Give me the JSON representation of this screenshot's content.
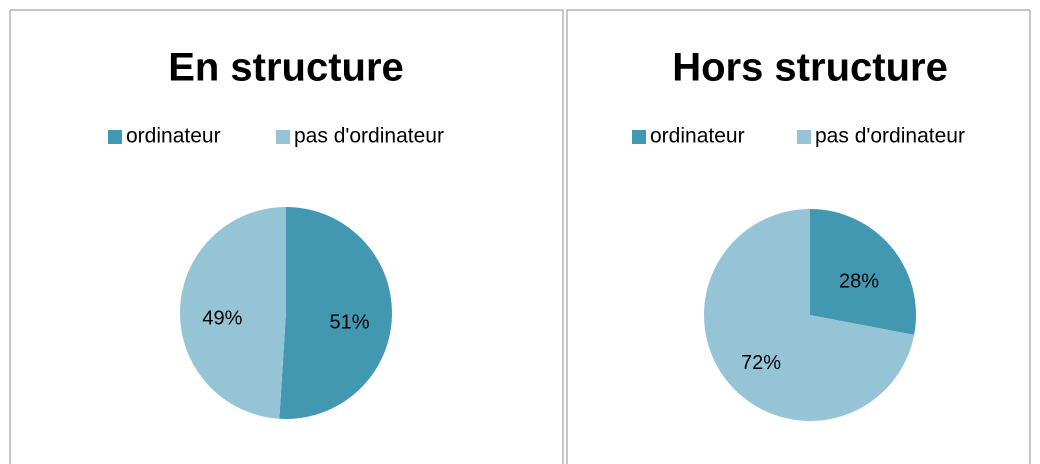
{
  "chart_data": [
    {
      "type": "pie",
      "title": "En structure",
      "categories": [
        "ordinateur",
        "pas d'ordinateur"
      ],
      "values": [
        51,
        49
      ],
      "value_labels": [
        "51%",
        "49%"
      ],
      "colors": [
        "#4198b0",
        "#95c4d6"
      ],
      "legend": "top"
    },
    {
      "type": "pie",
      "title": "Hors structure",
      "categories": [
        "ordinateur",
        "pas d'ordinateur"
      ],
      "values": [
        28,
        72
      ],
      "value_labels": [
        "28%",
        "72%"
      ],
      "colors": [
        "#4198b0",
        "#95c4d6"
      ],
      "legend": "top"
    }
  ]
}
